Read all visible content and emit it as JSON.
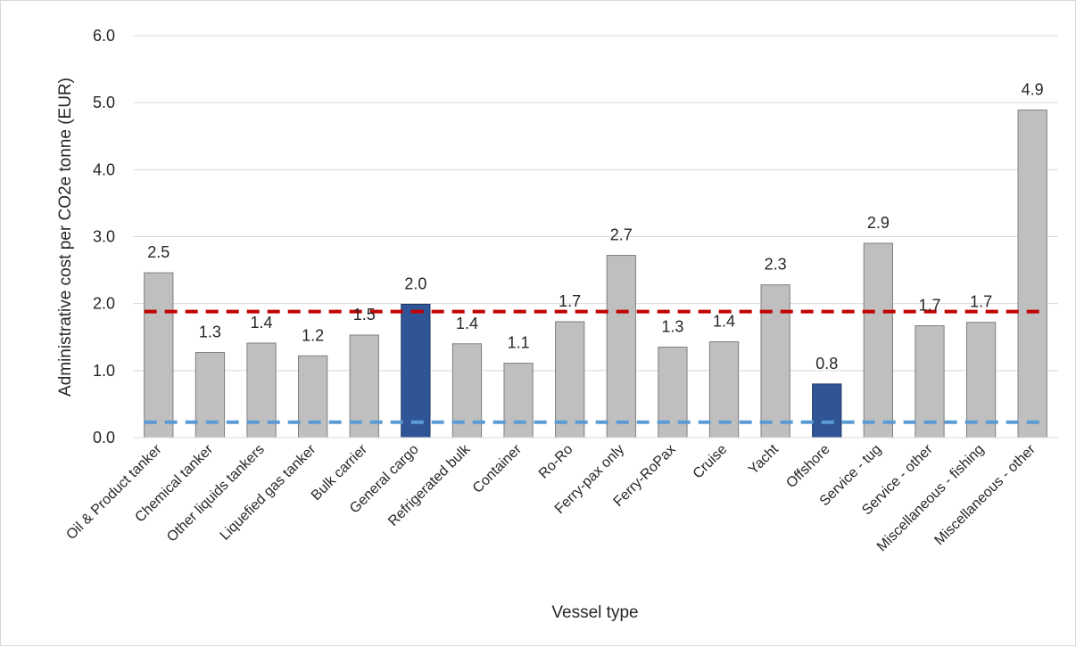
{
  "chart_data": {
    "type": "bar",
    "title": "",
    "xlabel": "Vessel type",
    "ylabel": "Administrative cost per CO2e tonne (EUR)",
    "ylim": [
      0,
      6
    ],
    "yticks": [
      "0.0",
      "1.0",
      "2.0",
      "3.0",
      "4.0",
      "5.0",
      "6.0"
    ],
    "grid": true,
    "legend": "none",
    "categories": [
      "Oil & Product tanker",
      "Chemical tanker",
      "Other liquids tankers",
      "Liquefied gas tanker",
      "Bulk carrier",
      "General cargo",
      "Refrigerated bulk",
      "Container",
      "Ro-Ro",
      "Ferry-pax only",
      "Ferry-RoPax",
      "Cruise",
      "Yacht",
      "Offshore",
      "Service - tug",
      "Service - other",
      "Miscellaneous - fishing",
      "Miscellaneous - other"
    ],
    "values": [
      2.46,
      1.27,
      1.41,
      1.22,
      1.53,
      1.99,
      1.4,
      1.11,
      1.73,
      2.72,
      1.35,
      1.43,
      2.28,
      0.8,
      2.9,
      1.67,
      1.72,
      4.89
    ],
    "data_labels": [
      "2.5",
      "1.3",
      "1.4",
      "1.2",
      "1.5",
      "2.0",
      "1.4",
      "1.1",
      "1.7",
      "2.7",
      "1.3",
      "1.4",
      "2.3",
      "0.8",
      "2.9",
      "1.7",
      "1.7",
      "4.9"
    ],
    "highlighted_categories": [
      "General cargo",
      "Offshore"
    ],
    "reference_lines": [
      {
        "value": 1.88,
        "color": "#c00000",
        "style": "dashed"
      },
      {
        "value": 0.23,
        "color": "#5b9bd5",
        "style": "dashed"
      }
    ],
    "colors": {
      "bar_default": "#bfbfbf",
      "bar_default_stroke": "#7f7f7f",
      "bar_highlight": "#2f5597",
      "bar_highlight_stroke": "#1f3864",
      "grid": "#d9d9d9"
    }
  }
}
